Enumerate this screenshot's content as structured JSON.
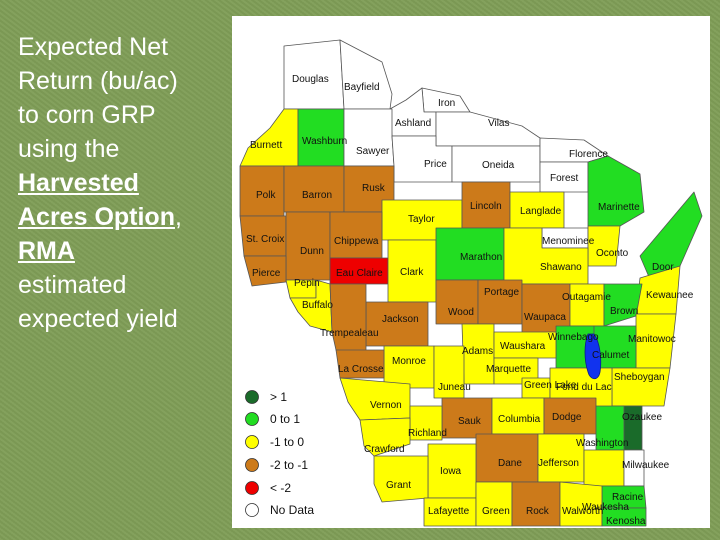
{
  "title": {
    "line1": "Expected Net",
    "line2": "Return (bu/ac)",
    "line3": "to corn GRP",
    "line4": "using the",
    "em1": "Harvested",
    "em2": "Acres Option",
    "comma": ",",
    "em3": "RMA",
    "line5": "estimated",
    "line6": "expected yield"
  },
  "colors": {
    "gt1": "#1a6b2a",
    "zero_to_1": "#22dd22",
    "neg1_to_0": "#ffff00",
    "neg2_to_neg1": "#cc7a1a",
    "lt_neg2": "#ee0000",
    "no_data": "#ffffff"
  },
  "legend": [
    {
      "key": "gt1",
      "label": "> 1"
    },
    {
      "key": "zero_to_1",
      "label": "0 to 1"
    },
    {
      "key": "neg1_to_0",
      "label": "-1 to 0"
    },
    {
      "key": "neg2_to_neg1",
      "label": "-2 to -1"
    },
    {
      "key": "lt_neg2",
      "label": "< -2"
    },
    {
      "key": "no_data",
      "label": "No Data"
    }
  ],
  "counties": {
    "douglas": {
      "name": "Douglas",
      "cls": "no_data"
    },
    "bayfield": {
      "name": "Bayfield",
      "cls": "no_data"
    },
    "iron": {
      "name": "Iron",
      "cls": "no_data"
    },
    "ashland": {
      "name": "Ashland",
      "cls": "no_data"
    },
    "vilas": {
      "name": "Vilas",
      "cls": "no_data"
    },
    "burnett": {
      "name": "Burnett",
      "cls": "neg1_to_0"
    },
    "washburn": {
      "name": "Washburn",
      "cls": "zero_to_1"
    },
    "sawyer": {
      "name": "Sawyer",
      "cls": "no_data"
    },
    "price": {
      "name": "Price",
      "cls": "no_data"
    },
    "oneida": {
      "name": "Oneida",
      "cls": "no_data"
    },
    "florence": {
      "name": "Florence",
      "cls": "no_data"
    },
    "forest": {
      "name": "Forest",
      "cls": "no_data"
    },
    "marinette": {
      "name": "Marinette",
      "cls": "zero_to_1"
    },
    "polk": {
      "name": "Polk",
      "cls": "neg2_to_neg1"
    },
    "barron": {
      "name": "Barron",
      "cls": "neg2_to_neg1"
    },
    "rusk": {
      "name": "Rusk",
      "cls": "neg2_to_neg1"
    },
    "taylor": {
      "name": "Taylor",
      "cls": "neg1_to_0"
    },
    "lincoln": {
      "name": "Lincoln",
      "cls": "neg2_to_neg1"
    },
    "langlade": {
      "name": "Langlade",
      "cls": "neg1_to_0"
    },
    "menominee": {
      "name": "Menominee",
      "cls": "no_data"
    },
    "oconto": {
      "name": "Oconto",
      "cls": "neg1_to_0"
    },
    "door": {
      "name": "Door",
      "cls": "zero_to_1"
    },
    "stcroix": {
      "name": "St. Croix",
      "cls": "neg2_to_neg1"
    },
    "dunn": {
      "name": "Dunn",
      "cls": "neg2_to_neg1"
    },
    "chippewa": {
      "name": "Chippewa",
      "cls": "neg2_to_neg1"
    },
    "eauclaire": {
      "name": "Eau Claire",
      "cls": "lt_neg2"
    },
    "clark": {
      "name": "Clark",
      "cls": "neg1_to_0"
    },
    "marathon": {
      "name": "Marathon",
      "cls": "zero_to_1"
    },
    "shawano": {
      "name": "Shawano",
      "cls": "neg1_to_0"
    },
    "kewaunee": {
      "name": "Kewaunee",
      "cls": "neg1_to_0"
    },
    "pierce": {
      "name": "Pierce",
      "cls": "neg2_to_neg1"
    },
    "pepin": {
      "name": "Pepin",
      "cls": "neg1_to_0"
    },
    "buffalo": {
      "name": "Buffalo",
      "cls": "neg1_to_0"
    },
    "wood": {
      "name": "Wood",
      "cls": "neg2_to_neg1"
    },
    "portage": {
      "name": "Portage",
      "cls": "neg2_to_neg1"
    },
    "waupaca": {
      "name": "Waupaca",
      "cls": "neg2_to_neg1"
    },
    "outagamie": {
      "name": "Outagamie",
      "cls": "neg1_to_0"
    },
    "brown": {
      "name": "Brown",
      "cls": "zero_to_1"
    },
    "jackson": {
      "name": "Jackson",
      "cls": "neg2_to_neg1"
    },
    "trempealeau": {
      "name": "Trempealeau",
      "cls": "neg2_to_neg1"
    },
    "manitowoc": {
      "name": "Manitowoc",
      "cls": "neg1_to_0"
    },
    "winnebago": {
      "name": "Winnebago",
      "cls": "zero_to_1"
    },
    "calumet": {
      "name": "Calumet",
      "cls": "zero_to_1"
    },
    "adams": {
      "name": "Adams",
      "cls": "neg1_to_0"
    },
    "waushara": {
      "name": "Waushara",
      "cls": "neg1_to_0"
    },
    "monroe": {
      "name": "Monroe",
      "cls": "neg1_to_0"
    },
    "lacrosse": {
      "name": "La Crosse",
      "cls": "neg2_to_neg1"
    },
    "marquette": {
      "name": "Marquette",
      "cls": "neg1_to_0"
    },
    "sheboygan": {
      "name": "Sheboygan",
      "cls": "neg1_to_0"
    },
    "juneau": {
      "name": "Juneau",
      "cls": "neg1_to_0"
    },
    "greenlake": {
      "name": "Green Lake",
      "cls": "neg1_to_0"
    },
    "fonddulac": {
      "name": "Fond du Lac",
      "cls": "neg1_to_0"
    },
    "vernon": {
      "name": "Vernon",
      "cls": "neg1_to_0"
    },
    "sauk": {
      "name": "Sauk",
      "cls": "neg2_to_neg1"
    },
    "columbia": {
      "name": "Columbia",
      "cls": "neg1_to_0"
    },
    "dodge": {
      "name": "Dodge",
      "cls": "neg2_to_neg1"
    },
    "ozaukee": {
      "name": "Ozaukee",
      "cls": "gt1"
    },
    "richland": {
      "name": "Richland",
      "cls": "neg1_to_0"
    },
    "washington": {
      "name": "Washington",
      "cls": "zero_to_1"
    },
    "crawford": {
      "name": "Crawford",
      "cls": "neg1_to_0"
    },
    "dane": {
      "name": "Dane",
      "cls": "neg2_to_neg1"
    },
    "jefferson": {
      "name": "Jefferson",
      "cls": "neg1_to_0"
    },
    "waukesha": {
      "name": "Waukesha",
      "cls": "neg1_to_0"
    },
    "milwaukee": {
      "name": "Milwaukee",
      "cls": "no_data"
    },
    "iowa": {
      "name": "Iowa",
      "cls": "neg1_to_0"
    },
    "grant": {
      "name": "Grant",
      "cls": "neg1_to_0"
    },
    "racine": {
      "name": "Racine",
      "cls": "zero_to_1"
    },
    "lafayette": {
      "name": "Lafayette",
      "cls": "neg1_to_0"
    },
    "green": {
      "name": "Green",
      "cls": "neg1_to_0"
    },
    "rock": {
      "name": "Rock",
      "cls": "neg2_to_neg1"
    },
    "walworth": {
      "name": "Walworth",
      "cls": "neg1_to_0"
    },
    "kenosha": {
      "name": "Kenosha",
      "cls": "zero_to_1"
    }
  }
}
